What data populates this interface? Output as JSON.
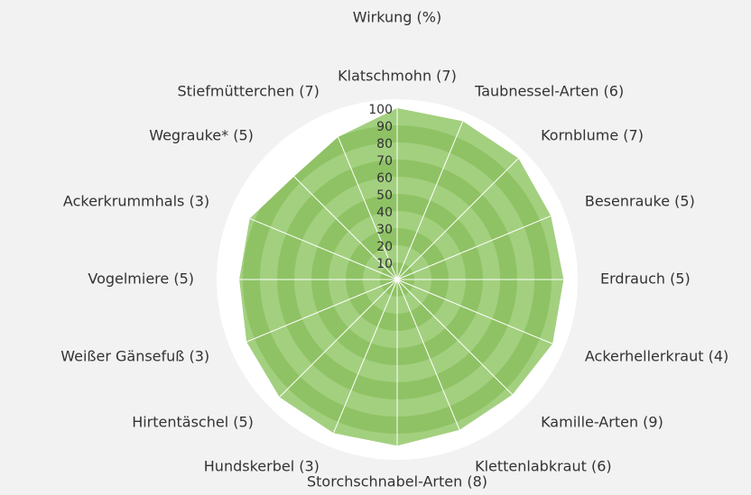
{
  "chart_data": {
    "type": "radar",
    "title": "Wirkung (%)",
    "categories": [
      "Klatschmohn (7)",
      "Taubnessel-Arten (6)",
      "Kornblume (7)",
      "Besenrauke (5)",
      "Erdrauch (5)",
      "Ackerhellerkraut (4)",
      "Kamille-Arten (9)",
      "Klettenlabkraut (6)",
      "Storchschnabel-Arten (8)",
      "Hundskerbel (3)",
      "Hirtentäschel (5)",
      "Weißer Gänsefuß (3)",
      "Vogelmiere (5)",
      "Ackerkrummhals (3)",
      "Wegrauke* (5)",
      "Stiefmütterchen (7)"
    ],
    "values": [
      100,
      100,
      100,
      97,
      97,
      98,
      95,
      95,
      97,
      97,
      97,
      95,
      92,
      93,
      85,
      90
    ],
    "color": "#93c96b",
    "ylim": [
      0,
      100
    ],
    "yticks": [
      10,
      20,
      30,
      40,
      50,
      60,
      70,
      80,
      90,
      100
    ],
    "grid": true
  }
}
